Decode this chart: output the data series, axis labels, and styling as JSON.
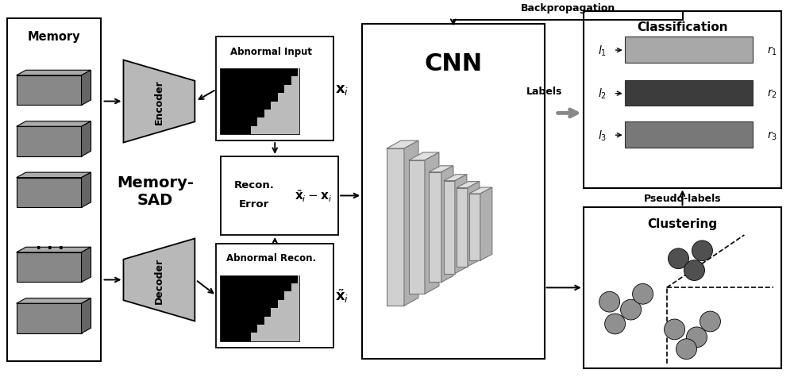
{
  "bg_color": "#ffffff",
  "memory_label": "Memory",
  "encoder_label": "Encoder",
  "decoder_label": "Decoder",
  "memory_sad_label": "Memory-\nSAD",
  "cnn_label": "CNN",
  "classification_label": "Classification",
  "clustering_label": "Clustering",
  "recon_label1": "Recon.",
  "recon_label2": "Error",
  "abnormal_input_label": "Abnormal Input",
  "abnormal_recon_label": "Abnormal Recon.",
  "backprop_label": "Backpropagation",
  "labels_label": "Labels",
  "pseudo_labels_label": "Pseudo-labels",
  "bar_colors": [
    "#a8a8a8",
    "#3c3c3c",
    "#787878"
  ],
  "memory_bar_fc": "#888888",
  "memory_bar_top": "#aaaaaa",
  "memory_bar_right": "#666666",
  "enc_fc": "#b8b8b8",
  "cnn_layer_fc": "#d0d0d0",
  "cnn_layer_top": "#e0e0e0",
  "cnn_layer_right": "#b0b0b0",
  "dot_color_light": "#909090",
  "dot_color_dark": "#505050"
}
